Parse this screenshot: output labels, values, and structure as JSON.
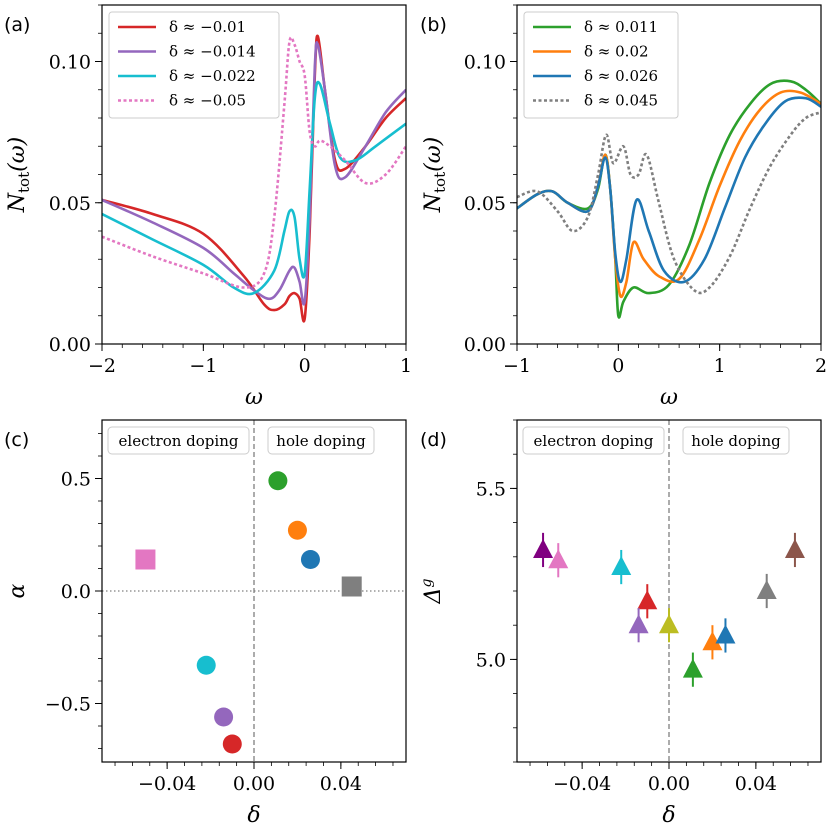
{
  "chart_data": [
    {
      "panel": "(a)",
      "type": "line",
      "xlabel": "ω",
      "ylabel": "N_tot(ω)",
      "ylabel_main": "N",
      "ylabel_sub": "tot",
      "ylabel_args": "(ω)",
      "xlim": [
        -2,
        1
      ],
      "ylim": [
        0,
        0.12
      ],
      "xticks": [
        -2,
        -1,
        0,
        1
      ],
      "xtick_labels": [
        "−2",
        "−1",
        "0",
        "1"
      ],
      "yticks": [
        0.0,
        0.05,
        0.1
      ],
      "ytick_labels": [
        "0.00",
        "0.05",
        "0.10"
      ],
      "legend": "top-left",
      "series": [
        {
          "name": "δ ≈ −0.01",
          "color": "#d62728",
          "dash": "solid",
          "x": [
            -2,
            -1.5,
            -1,
            -0.6,
            -0.4,
            -0.3,
            -0.2,
            -0.15,
            -0.1,
            -0.05,
            0,
            0.05,
            0.1,
            0.13,
            0.2,
            0.3,
            0.4,
            0.6,
            0.8,
            1
          ],
          "y": [
            0.051,
            0.046,
            0.039,
            0.024,
            0.014,
            0.012,
            0.014,
            0.017,
            0.018,
            0.016,
            0.009,
            0.04,
            0.095,
            0.109,
            0.09,
            0.065,
            0.062,
            0.07,
            0.08,
            0.087
          ]
        },
        {
          "name": "δ ≈ −0.014",
          "color": "#9467bd",
          "dash": "solid",
          "x": [
            -2,
            -1.5,
            -1,
            -0.7,
            -0.5,
            -0.35,
            -0.25,
            -0.15,
            -0.1,
            -0.05,
            0,
            0.05,
            0.1,
            0.13,
            0.2,
            0.3,
            0.4,
            0.6,
            0.8,
            1
          ],
          "y": [
            0.051,
            0.043,
            0.034,
            0.025,
            0.019,
            0.016,
            0.019,
            0.026,
            0.027,
            0.022,
            0.015,
            0.045,
            0.098,
            0.106,
            0.09,
            0.063,
            0.059,
            0.07,
            0.082,
            0.09
          ]
        },
        {
          "name": "δ ≈ −0.022",
          "color": "#17becf",
          "dash": "solid",
          "x": [
            -2,
            -1.5,
            -1,
            -0.7,
            -0.5,
            -0.3,
            -0.2,
            -0.15,
            -0.1,
            -0.05,
            0,
            0.05,
            0.1,
            0.15,
            0.25,
            0.35,
            0.5,
            0.7,
            1
          ],
          "y": [
            0.046,
            0.037,
            0.028,
            0.02,
            0.018,
            0.026,
            0.04,
            0.047,
            0.045,
            0.03,
            0.025,
            0.055,
            0.087,
            0.092,
            0.078,
            0.066,
            0.065,
            0.07,
            0.078
          ]
        },
        {
          "name": "δ ≈ −0.05",
          "color": "#e377c2",
          "dash": "dotted",
          "x": [
            -2,
            -1.5,
            -1,
            -0.6,
            -0.4,
            -0.3,
            -0.2,
            -0.15,
            -0.1,
            -0.05,
            0,
            0.05,
            0.1,
            0.15,
            0.25,
            0.4,
            0.6,
            0.8,
            1
          ],
          "y": [
            0.038,
            0.031,
            0.025,
            0.02,
            0.025,
            0.045,
            0.085,
            0.107,
            0.106,
            0.1,
            0.095,
            0.075,
            0.07,
            0.072,
            0.07,
            0.065,
            0.057,
            0.06,
            0.07
          ]
        }
      ]
    },
    {
      "panel": "(b)",
      "type": "line",
      "xlabel": "ω",
      "ylabel": "N_tot(ω)",
      "ylabel_main": "N",
      "ylabel_sub": "tot",
      "ylabel_args": "(ω)",
      "xlim": [
        -1,
        2
      ],
      "ylim": [
        0,
        0.12
      ],
      "xticks": [
        -1,
        0,
        1,
        2
      ],
      "xtick_labels": [
        "−1",
        "0",
        "1",
        "2"
      ],
      "yticks": [
        0.0,
        0.05,
        0.1
      ],
      "ytick_labels": [
        "0.00",
        "0.05",
        "0.10"
      ],
      "legend": "top-left",
      "series": [
        {
          "name": "δ ≈ 0.011",
          "color": "#2ca02c",
          "dash": "solid",
          "x": [
            -1,
            -0.8,
            -0.65,
            -0.5,
            -0.3,
            -0.2,
            -0.13,
            -0.08,
            -0.03,
            0,
            0.05,
            0.15,
            0.3,
            0.5,
            0.7,
            0.9,
            1.1,
            1.3,
            1.5,
            1.7,
            1.85,
            2
          ],
          "y": [
            0.048,
            0.053,
            0.054,
            0.05,
            0.048,
            0.055,
            0.067,
            0.055,
            0.03,
            0.01,
            0.015,
            0.02,
            0.018,
            0.021,
            0.035,
            0.057,
            0.074,
            0.085,
            0.092,
            0.093,
            0.09,
            0.085
          ]
        },
        {
          "name": "δ ≈ 0.02",
          "color": "#ff7f0e",
          "dash": "solid",
          "x": [
            -1,
            -0.8,
            -0.65,
            -0.5,
            -0.3,
            -0.2,
            -0.13,
            -0.08,
            -0.03,
            0.02,
            0.08,
            0.15,
            0.25,
            0.4,
            0.6,
            0.8,
            1.0,
            1.2,
            1.4,
            1.6,
            1.8,
            2
          ],
          "y": [
            0.048,
            0.053,
            0.054,
            0.05,
            0.047,
            0.056,
            0.067,
            0.055,
            0.03,
            0.017,
            0.022,
            0.036,
            0.03,
            0.024,
            0.023,
            0.037,
            0.056,
            0.072,
            0.083,
            0.089,
            0.089,
            0.085
          ]
        },
        {
          "name": "δ ≈ 0.026",
          "color": "#1f77b4",
          "dash": "solid",
          "x": [
            -1,
            -0.8,
            -0.65,
            -0.5,
            -0.3,
            -0.2,
            -0.13,
            -0.08,
            -0.03,
            0.02,
            0.08,
            0.18,
            0.3,
            0.45,
            0.65,
            0.85,
            1.05,
            1.25,
            1.45,
            1.65,
            1.85,
            2
          ],
          "y": [
            0.048,
            0.053,
            0.054,
            0.05,
            0.047,
            0.056,
            0.066,
            0.055,
            0.032,
            0.022,
            0.03,
            0.051,
            0.04,
            0.026,
            0.022,
            0.03,
            0.048,
            0.066,
            0.078,
            0.086,
            0.087,
            0.084
          ]
        },
        {
          "name": "δ ≈ 0.045",
          "color": "#7f7f7f",
          "dash": "dotted",
          "x": [
            -1,
            -0.8,
            -0.6,
            -0.45,
            -0.3,
            -0.2,
            -0.12,
            -0.05,
            0.05,
            0.12,
            0.2,
            0.28,
            0.4,
            0.55,
            0.75,
            0.9,
            1.1,
            1.3,
            1.5,
            1.7,
            1.85,
            2
          ],
          "y": [
            0.052,
            0.054,
            0.047,
            0.04,
            0.045,
            0.06,
            0.074,
            0.064,
            0.07,
            0.06,
            0.06,
            0.067,
            0.05,
            0.03,
            0.019,
            0.02,
            0.031,
            0.048,
            0.063,
            0.074,
            0.08,
            0.082
          ]
        }
      ]
    },
    {
      "panel": "(c)",
      "type": "scatter",
      "xlabel": "δ",
      "ylabel": "α",
      "xlim": [
        -0.07,
        0.07
      ],
      "ylim": [
        -0.76,
        0.76
      ],
      "xticks": [
        -0.04,
        0.0,
        0.04
      ],
      "xtick_labels": [
        "−0.04",
        "0.00",
        "0.04"
      ],
      "yticks": [
        -0.5,
        0.0,
        0.5
      ],
      "ytick_labels": [
        "−0.5",
        "0.0",
        "0.5"
      ],
      "region_labels": [
        "electron doping",
        "hole doping"
      ],
      "points": [
        {
          "x": 0.011,
          "y": 0.49,
          "color": "#2ca02c",
          "marker": "circle"
        },
        {
          "x": 0.02,
          "y": 0.27,
          "color": "#ff7f0e",
          "marker": "circle"
        },
        {
          "x": 0.026,
          "y": 0.14,
          "color": "#1f77b4",
          "marker": "circle"
        },
        {
          "x": 0.045,
          "y": 0.02,
          "color": "#7f7f7f",
          "marker": "square"
        },
        {
          "x": -0.05,
          "y": 0.14,
          "color": "#e377c2",
          "marker": "square"
        },
        {
          "x": -0.022,
          "y": -0.33,
          "color": "#17becf",
          "marker": "circle"
        },
        {
          "x": -0.014,
          "y": -0.56,
          "color": "#9467bd",
          "marker": "circle"
        },
        {
          "x": -0.01,
          "y": -0.68,
          "color": "#d62728",
          "marker": "circle"
        }
      ]
    },
    {
      "panel": "(d)",
      "type": "scatter",
      "xlabel": "δ",
      "ylabel": "Δ^g",
      "ylabel_main": "Δ",
      "ylabel_sup": "g",
      "xlim": [
        -0.07,
        0.07
      ],
      "ylim": [
        4.7,
        5.7
      ],
      "xticks": [
        -0.04,
        0.0,
        0.04
      ],
      "xtick_labels": [
        "−0.04",
        "0.00",
        "0.04"
      ],
      "yticks": [
        5.0,
        5.5
      ],
      "ytick_labels": [
        "5.0",
        "5.5"
      ],
      "region_labels": [
        "electron doping",
        "hole doping"
      ],
      "points": [
        {
          "x": -0.058,
          "y": 5.32,
          "err": 0.05,
          "color": "#800080",
          "marker": "triangle"
        },
        {
          "x": -0.051,
          "y": 5.29,
          "err": 0.05,
          "color": "#e377c2",
          "marker": "triangle"
        },
        {
          "x": -0.022,
          "y": 5.27,
          "err": 0.05,
          "color": "#17becf",
          "marker": "triangle"
        },
        {
          "x": -0.01,
          "y": 5.17,
          "err": 0.05,
          "color": "#d62728",
          "marker": "triangle"
        },
        {
          "x": -0.014,
          "y": 5.1,
          "err": 0.05,
          "color": "#9467bd",
          "marker": "triangle"
        },
        {
          "x": 0.0,
          "y": 5.1,
          "err": 0.05,
          "color": "#bcbd22",
          "marker": "triangle"
        },
        {
          "x": 0.011,
          "y": 4.97,
          "err": 0.05,
          "color": "#2ca02c",
          "marker": "triangle"
        },
        {
          "x": 0.02,
          "y": 5.05,
          "err": 0.05,
          "color": "#ff7f0e",
          "marker": "triangle"
        },
        {
          "x": 0.026,
          "y": 5.07,
          "err": 0.05,
          "color": "#1f77b4",
          "marker": "triangle"
        },
        {
          "x": 0.045,
          "y": 5.2,
          "err": 0.05,
          "color": "#7f7f7f",
          "marker": "triangle"
        },
        {
          "x": 0.058,
          "y": 5.32,
          "err": 0.05,
          "color": "#8c564b",
          "marker": "triangle"
        }
      ]
    }
  ]
}
